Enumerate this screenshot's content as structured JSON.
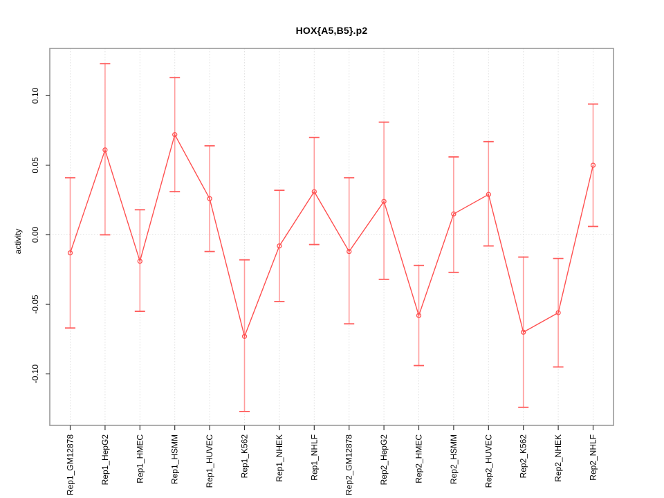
{
  "chart_data": {
    "type": "line",
    "title": "HOX{A5,B5}.p2",
    "xlabel": "",
    "ylabel": "activity",
    "legend_position": "none",
    "grid": {
      "vertical_dotted": true,
      "horizontal_zero_dotted": true
    },
    "categories": [
      "Rep1_GM12878",
      "Rep1_HepG2",
      "Rep1_HMEC",
      "Rep1_HSMM",
      "Rep1_HUVEC",
      "Rep1_K562",
      "Rep1_NHEK",
      "Rep1_NHLF",
      "Rep2_GM12878",
      "Rep2_HepG2",
      "Rep2_HMEC",
      "Rep2_HSMM",
      "Rep2_HUVEC",
      "Rep2_K562",
      "Rep2_NHEK",
      "Rep2_NHLF"
    ],
    "series": [
      {
        "name": "activity",
        "marker": "open-circle",
        "values": [
          -0.013,
          0.061,
          -0.019,
          0.072,
          0.026,
          -0.073,
          -0.008,
          0.031,
          -0.012,
          0.024,
          -0.058,
          0.015,
          0.029,
          -0.07,
          -0.056,
          0.05
        ],
        "error_upper": [
          0.041,
          0.123,
          0.018,
          0.113,
          0.064,
          -0.018,
          0.032,
          0.07,
          0.041,
          0.081,
          -0.022,
          0.056,
          0.067,
          -0.016,
          -0.017,
          0.094
        ],
        "error_lower": [
          -0.067,
          0.0,
          -0.055,
          0.031,
          -0.012,
          -0.127,
          -0.048,
          -0.007,
          -0.064,
          -0.032,
          -0.094,
          -0.027,
          -0.008,
          -0.124,
          -0.095,
          0.006
        ]
      }
    ],
    "yticks": [
      {
        "value": -0.1,
        "label": "-0.10"
      },
      {
        "value": -0.05,
        "label": "-0.05"
      },
      {
        "value": 0.0,
        "label": "0.00"
      },
      {
        "value": 0.05,
        "label": "0.05"
      },
      {
        "value": 0.1,
        "label": "0.10"
      }
    ],
    "ylim": [
      -0.137,
      0.134
    ],
    "colors": {
      "line": "#FF5050",
      "marker": "#FF5050",
      "error_stem": "#FF9C9C",
      "error_cap": "#FF5C5C",
      "gridline": "#E0E0E0",
      "box_border": "#999999",
      "tick": "#333333",
      "text": "#000000",
      "background": "#FFFFFF"
    }
  }
}
